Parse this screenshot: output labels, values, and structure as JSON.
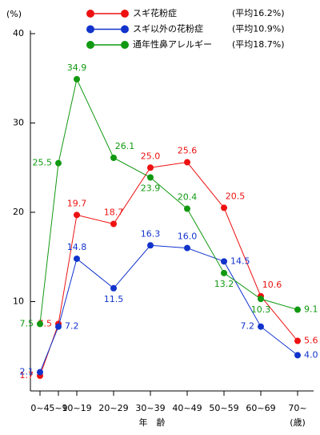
{
  "chart_data": {
    "type": "line",
    "y_unit_label": "(%)",
    "x_axis_label": "年　齢",
    "x_unit_label": "(歳)",
    "categories": [
      "0~4",
      "5~9",
      "10~19",
      "20~29",
      "30~39",
      "40~49",
      "50~59",
      "60~69",
      "70~"
    ],
    "series": [
      {
        "name": "スギ花粉症",
        "average_label": "(平均16.2%)",
        "color": "#ee1111",
        "values": [
          1.7,
          7.5,
          19.7,
          18.7,
          25.0,
          25.6,
          20.5,
          10.6,
          5.6
        ],
        "value_labels": [
          "1.7",
          "7.5",
          "19.7",
          "18.7",
          "25.0",
          "25.6",
          "20.5",
          "10.6",
          "5.6"
        ]
      },
      {
        "name": "スギ以外の花粉症",
        "average_label": "(平均10.9%)",
        "color": "#1133cc",
        "values": [
          2.1,
          7.2,
          14.8,
          11.5,
          16.3,
          16.0,
          14.5,
          7.2,
          4.0
        ],
        "value_labels": [
          "2.1",
          "7.2",
          "14.8",
          "11.5",
          "16.3",
          "16.0",
          "14.5",
          "7.2",
          "4.0"
        ]
      },
      {
        "name": "通年性鼻アレルギー",
        "average_label": "(平均18.7%)",
        "color": "#119911",
        "values": [
          7.5,
          25.5,
          34.9,
          26.1,
          23.9,
          20.4,
          13.2,
          10.3,
          9.1
        ],
        "value_labels": [
          "7.5",
          "25.5",
          "34.9",
          "26.1",
          "23.9",
          "20.4",
          "13.2",
          "10.3",
          "9.1"
        ]
      }
    ],
    "ylim": [
      0,
      40
    ],
    "yticks": [
      10,
      20,
      30,
      40
    ],
    "grid": false
  }
}
